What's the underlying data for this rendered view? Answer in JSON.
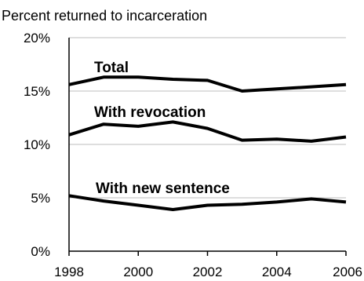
{
  "chart_data": {
    "type": "line",
    "title": "Percent returned to incarceration",
    "xlabel": "",
    "ylabel": "",
    "x": [
      1998,
      1999,
      2000,
      2001,
      2002,
      2003,
      2004,
      2005,
      2006
    ],
    "xticks": [
      1998,
      2000,
      2002,
      2004,
      2006
    ],
    "xtick_labels": [
      "1998",
      "2000",
      "2002",
      "2004",
      "2006"
    ],
    "yticks": [
      0,
      5,
      10,
      15,
      20
    ],
    "ytick_labels": [
      "0%",
      "5%",
      "10%",
      "15%",
      "20%"
    ],
    "xlim": [
      1998,
      2006
    ],
    "ylim": [
      0,
      20
    ],
    "grid": "horizontal",
    "legend": "none",
    "series": [
      {
        "name": "Total",
        "values": [
          15.6,
          16.3,
          16.3,
          16.1,
          16.0,
          15.0,
          15.2,
          15.4,
          15.6
        ]
      },
      {
        "name": "With revocation",
        "values": [
          10.9,
          11.9,
          11.7,
          12.1,
          11.5,
          10.4,
          10.5,
          10.3,
          10.7
        ]
      },
      {
        "name": "With new sentence",
        "values": [
          5.2,
          4.7,
          4.3,
          3.9,
          4.3,
          4.4,
          4.6,
          4.9,
          4.6
        ]
      }
    ]
  }
}
